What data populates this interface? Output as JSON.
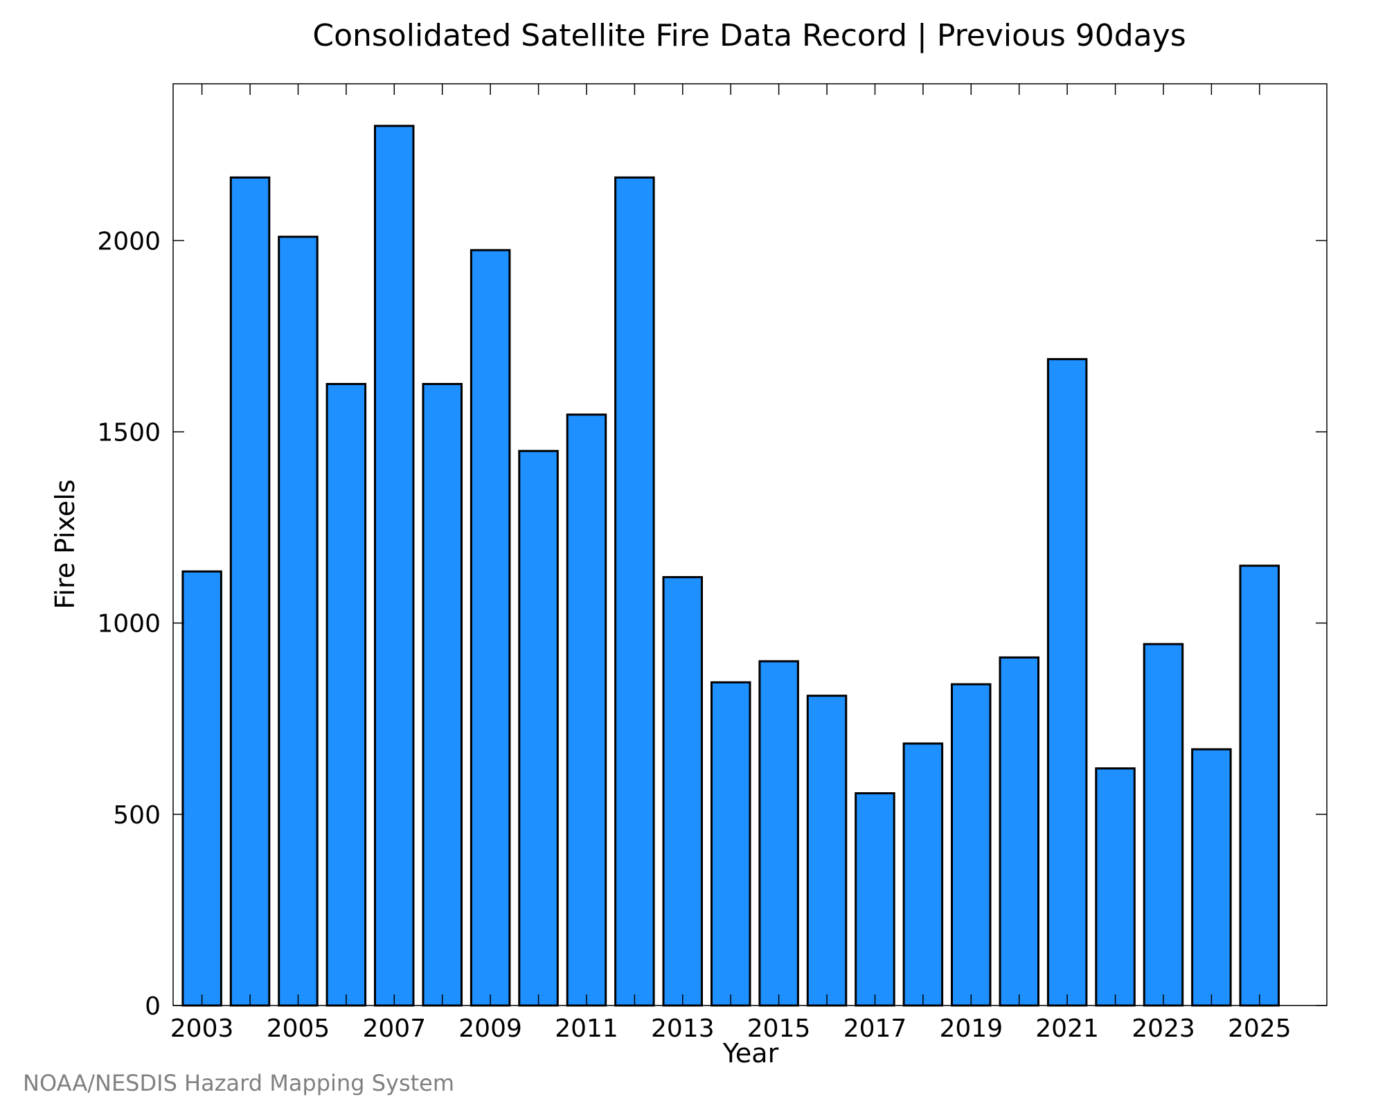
{
  "chart_data": {
    "type": "bar",
    "title": "Consolidated Satellite Fire Data Record | Previous 90days",
    "xlabel": "Year",
    "ylabel": "Fire Pixels",
    "categories": [
      2003,
      2004,
      2005,
      2006,
      2007,
      2008,
      2009,
      2010,
      2011,
      2012,
      2013,
      2014,
      2015,
      2016,
      2017,
      2018,
      2019,
      2020,
      2021,
      2022,
      2023,
      2024,
      2025
    ],
    "values": [
      1135,
      2165,
      2010,
      1625,
      2300,
      1625,
      1975,
      1450,
      1545,
      2165,
      1120,
      845,
      900,
      810,
      555,
      685,
      840,
      910,
      1690,
      620,
      945,
      670,
      1150
    ],
    "x_tick_labels": [
      "2003",
      "2005",
      "2007",
      "2009",
      "2011",
      "2013",
      "2015",
      "2017",
      "2019",
      "2021",
      "2023",
      "2025"
    ],
    "y_tick_labels": [
      "0",
      "500",
      "1000",
      "1500",
      "2000"
    ],
    "y_ticks": [
      0,
      500,
      1000,
      1500,
      2000
    ],
    "ylim": [
      0,
      2410
    ],
    "bar_color": "#1e90ff",
    "grid": false
  },
  "footer": {
    "credit": "NOAA/NESDIS Hazard Mapping System"
  }
}
